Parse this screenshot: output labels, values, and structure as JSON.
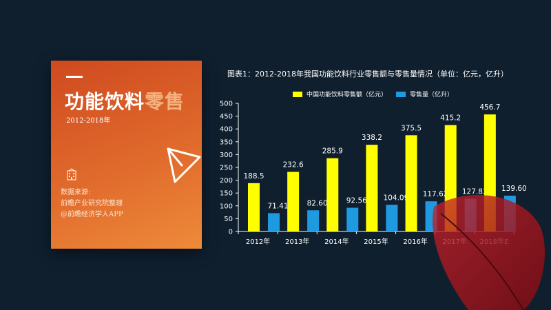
{
  "panel": {
    "title_part1": "功能饮料",
    "title_part2": "零售",
    "subtitle": "2012-2018年",
    "source_lines": [
      "数据来源:",
      "前瞻产业研究院整理",
      "@前瞻经济学人APP"
    ]
  },
  "chart_data": {
    "type": "bar",
    "title": "图表1：2012-2018年我国功能饮料行业零售额与零售量情况（单位：亿元，亿升）",
    "categories": [
      "2012年",
      "2013年",
      "2014年",
      "2015年",
      "2016年",
      "2017年",
      "2018年E"
    ],
    "series": [
      {
        "name": "中国功能饮料零售额（亿元）",
        "values": [
          188.5,
          232.6,
          285.9,
          338.2,
          375.5,
          415.2,
          456.7
        ],
        "color": "#ffff00"
      },
      {
        "name": "零售量（亿升）",
        "values": [
          71.41,
          82.6,
          92.56,
          104.09,
          117.62,
          127.83,
          139.6
        ],
        "color": "#1f9ae0"
      }
    ],
    "value_labels": [
      [
        "188.5",
        "232.6",
        "285.9",
        "338.2",
        "375.5",
        "415.2",
        "456.7"
      ],
      [
        "71.41",
        "82.60",
        "92.56",
        "104.09",
        "117.62",
        "127.83",
        "139.60"
      ]
    ],
    "ylim": [
      0,
      500
    ],
    "yticks": [
      0,
      50,
      100,
      150,
      200,
      250,
      300,
      350,
      400,
      450,
      500
    ],
    "legend_position": "top",
    "grid": false
  },
  "colors": {
    "background": "#0f1f2e",
    "panel_orange": "#e06a2c",
    "axis": "#ffffff"
  }
}
